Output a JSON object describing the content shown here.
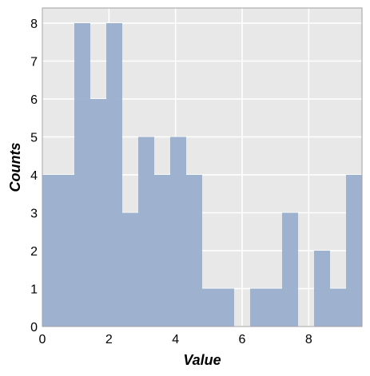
{
  "chart_data": {
    "type": "bar",
    "xlabel": "Value",
    "ylabel": "Counts",
    "xlim": [
      0,
      9.6
    ],
    "ylim": [
      0,
      8.4
    ],
    "x_ticks": [
      0,
      2,
      4,
      6,
      8
    ],
    "y_ticks": [
      0,
      1,
      2,
      3,
      4,
      5,
      6,
      7,
      8
    ],
    "grid": true,
    "bins": [
      {
        "x0": 0.0,
        "x1": 0.96,
        "count": 4
      },
      {
        "x0": 0.96,
        "x1": 1.44,
        "count": 8
      },
      {
        "x0": 1.44,
        "x1": 1.92,
        "count": 6
      },
      {
        "x0": 1.92,
        "x1": 2.4,
        "count": 8
      },
      {
        "x0": 2.4,
        "x1": 2.88,
        "count": 3
      },
      {
        "x0": 2.88,
        "x1": 3.36,
        "count": 5
      },
      {
        "x0": 3.36,
        "x1": 3.84,
        "count": 4
      },
      {
        "x0": 3.84,
        "x1": 4.32,
        "count": 5
      },
      {
        "x0": 4.32,
        "x1": 4.8,
        "count": 4
      },
      {
        "x0": 4.8,
        "x1": 5.76,
        "count": 1
      },
      {
        "x0": 5.76,
        "x1": 6.24,
        "count": 0
      },
      {
        "x0": 6.24,
        "x1": 7.2,
        "count": 1
      },
      {
        "x0": 7.2,
        "x1": 7.68,
        "count": 3
      },
      {
        "x0": 7.68,
        "x1": 8.16,
        "count": 0
      },
      {
        "x0": 8.16,
        "x1": 8.64,
        "count": 2
      },
      {
        "x0": 8.64,
        "x1": 9.12,
        "count": 1
      },
      {
        "x0": 9.12,
        "x1": 9.6,
        "count": 4
      }
    ],
    "colors": {
      "bar": "#9aafcf",
      "plot_bg": "#e8e8e8",
      "grid": "#ffffff",
      "frame": "#a0a0a0"
    }
  }
}
